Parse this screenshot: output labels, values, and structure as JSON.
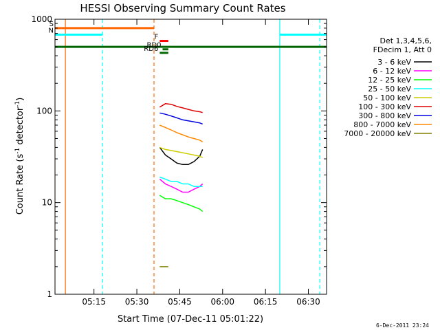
{
  "chart_data": {
    "type": "line",
    "title": "HESSI Observing Summary Count Rates",
    "xlabel": "Start Time (07-Dec-11 05:01:22)",
    "ylabel_main": "Count Rate (s",
    "ylabel_sup1": "-1",
    "ylabel_mid": " detector",
    "ylabel_sup2": "-1",
    "ylabel_end": ")",
    "footer": "6-Dec-2011 23:24",
    "y_scale": "log",
    "ylim": [
      1,
      1000
    ],
    "xlim": [
      "05:01:22",
      "06:36:22"
    ],
    "y_ticks": [
      {
        "value": 1,
        "label": "1"
      },
      {
        "value": 10,
        "label": "10"
      },
      {
        "value": 100,
        "label": "100"
      },
      {
        "value": 1000,
        "label": "1000"
      }
    ],
    "x_ticks": [
      {
        "value": "05:15",
        "label": "05:15"
      },
      {
        "value": "05:30",
        "label": "05:30"
      },
      {
        "value": "05:45",
        "label": "05:45"
      },
      {
        "value": "06:00",
        "label": "06:00"
      },
      {
        "value": "06:15",
        "label": "06:15"
      },
      {
        "value": "06:30",
        "label": "06:30"
      }
    ],
    "legend_header": [
      "Det 1,3,4,5,6,",
      "FDecim 1, Att 0"
    ],
    "legend_placement": "right",
    "series": [
      {
        "name": "3 - 6 keV",
        "color": "#000000",
        "x": [
          "05:38",
          "05:40",
          "05:42",
          "05:44",
          "05:46",
          "05:48",
          "05:50",
          "05:52",
          "05:53"
        ],
        "y": [
          40,
          33,
          30,
          27,
          26,
          26,
          28,
          32,
          38
        ]
      },
      {
        "name": "6 - 12 keV",
        "color": "#ff00ff",
        "x": [
          "05:38",
          "05:40",
          "05:42",
          "05:44",
          "05:46",
          "05:48",
          "05:50",
          "05:52",
          "05:53"
        ],
        "y": [
          18,
          16,
          15,
          14,
          13,
          13,
          14,
          15,
          16
        ]
      },
      {
        "name": "12 - 25 keV",
        "color": "#00ff00",
        "x": [
          "05:38",
          "05:40",
          "05:42",
          "05:44",
          "05:46",
          "05:48",
          "05:50",
          "05:52",
          "05:53"
        ],
        "y": [
          12,
          11,
          11,
          10.5,
          10,
          9.5,
          9,
          8.5,
          8
        ]
      },
      {
        "name": "25 - 50 keV",
        "color": "#00ffff",
        "x": [
          "05:38",
          "05:40",
          "05:42",
          "05:44",
          "05:46",
          "05:48",
          "05:50",
          "05:52",
          "05:53"
        ],
        "y": [
          19,
          18,
          17,
          17,
          16,
          16,
          15,
          15,
          15
        ]
      },
      {
        "name": "50 - 100 keV",
        "color": "#cccc00",
        "x": [
          "05:38",
          "05:40",
          "05:42",
          "05:44",
          "05:46",
          "05:48",
          "05:50",
          "05:52",
          "05:53"
        ],
        "y": [
          40,
          38,
          37,
          36,
          35,
          34,
          33,
          32,
          31
        ]
      },
      {
        "name": "100 - 300 keV",
        "color": "#dd0000",
        "x": [
          "05:38",
          "05:40",
          "05:42",
          "05:44",
          "05:46",
          "05:48",
          "05:50",
          "05:52",
          "05:53"
        ],
        "y": [
          110,
          120,
          118,
          112,
          108,
          104,
          100,
          98,
          96
        ]
      },
      {
        "name": "300 - 800 keV",
        "color": "#0000dd",
        "x": [
          "05:38",
          "05:40",
          "05:42",
          "05:44",
          "05:46",
          "05:48",
          "05:50",
          "05:52",
          "05:53"
        ],
        "y": [
          95,
          92,
          88,
          84,
          80,
          78,
          76,
          74,
          72
        ]
      },
      {
        "name": "800 - 7000 keV",
        "color": "#ff8800",
        "x": [
          "05:38",
          "05:40",
          "05:42",
          "05:44",
          "05:46",
          "05:48",
          "05:50",
          "05:52",
          "05:53"
        ],
        "y": [
          70,
          66,
          62,
          58,
          55,
          52,
          50,
          48,
          46
        ]
      },
      {
        "name": "7000 - 20000 keV",
        "color": "#808000",
        "x": [
          "05:38",
          "05:39",
          "05:40",
          "05:41"
        ],
        "y": [
          2,
          2,
          2,
          2
        ]
      }
    ],
    "flag_bars": [
      {
        "label": "S",
        "color": "#ff6600",
        "start": "05:01:22",
        "end": "05:36",
        "y": 800
      },
      {
        "label": "N",
        "color": "#00ffff",
        "start": "05:01:22",
        "end": "05:18",
        "y": 680
      },
      {
        "label": "",
        "color": "#00ffff",
        "start": "06:20",
        "end": "06:36:22",
        "y": 680
      },
      {
        "label": "F",
        "color": "#ff0000",
        "start": "05:38",
        "end": "05:41",
        "y": 580
      },
      {
        "label": "",
        "color": "#006600",
        "start": "05:01:22",
        "end": "06:36:22",
        "y": 500
      },
      {
        "label": "RD0",
        "color": "#006600",
        "start": "05:39",
        "end": "05:41",
        "y": 470
      },
      {
        "label": "RD6",
        "color": "#006600",
        "start": "05:38",
        "end": "05:41",
        "y": 430
      }
    ],
    "vertical_markers": [
      {
        "time": "05:05",
        "color": "#ff6600",
        "style": "solid"
      },
      {
        "time": "05:18",
        "color": "#00ffff",
        "style": "dashed"
      },
      {
        "time": "05:36",
        "color": "#ff6600",
        "style": "dashed"
      },
      {
        "time": "06:20",
        "color": "#00ffff",
        "style": "solid"
      },
      {
        "time": "06:34",
        "color": "#00ffff",
        "style": "dashed"
      }
    ]
  }
}
